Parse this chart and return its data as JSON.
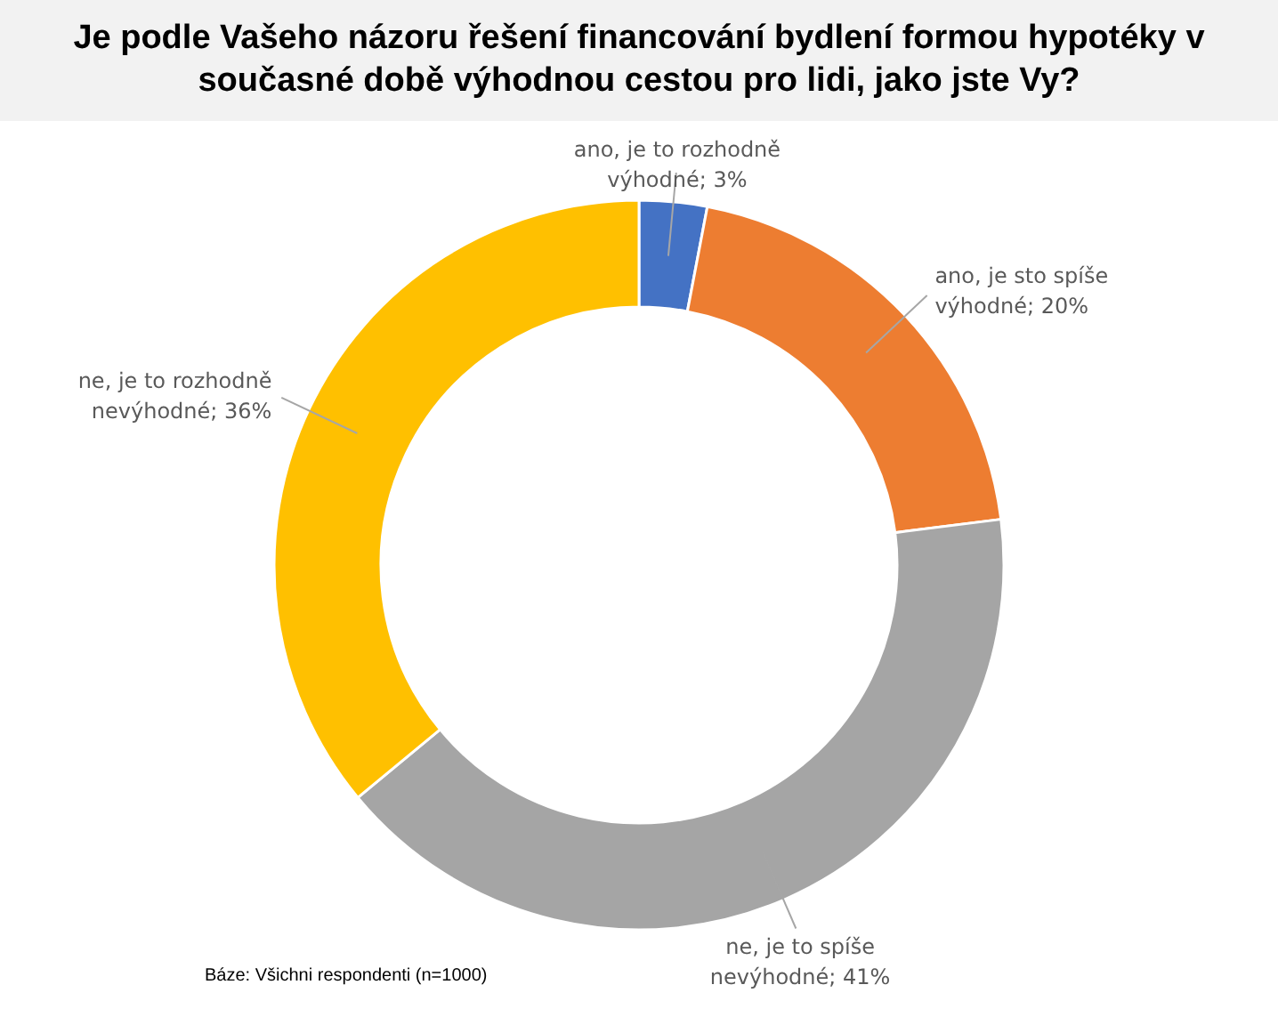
{
  "chart_data": {
    "type": "donut",
    "title": "Je podle Vašeho názoru řešení financování bydlení formou hypotéky v současné době výhodnou cestou pro lidi, jako jste Vy?",
    "categories": [
      "ano, je to rozhodně výhodné",
      "ano, je sto spíše výhodné",
      "ne, je to spíše nevýhodné",
      "ne, je to rozhodně nevýhodné"
    ],
    "values": [
      3,
      20,
      41,
      36
    ],
    "colors": [
      "#4472c4",
      "#ed7d31",
      "#a5a5a5",
      "#ffc000"
    ],
    "value_labels": [
      "3%",
      "20%",
      "41%",
      "36%"
    ],
    "annotations": [
      "Báze: Všichni respondenti (n=1000)"
    ]
  }
}
